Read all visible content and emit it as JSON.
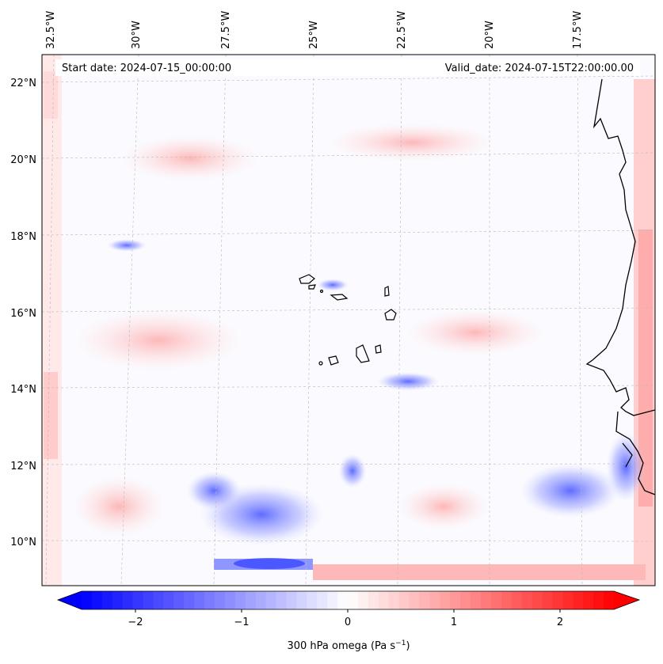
{
  "map": {
    "start_label": "Start date: 2024-07-15_00:00:00",
    "valid_label": "Valid_date: 2024-07-15T22:00:00.00",
    "lon_labels": [
      "32.5°W",
      "30°W",
      "27.5°W",
      "25°W",
      "22.5°W",
      "20°W",
      "17.5°W"
    ],
    "lat_labels": [
      "22°N",
      "20°N",
      "18°N",
      "16°N",
      "14°N",
      "12°N",
      "10°N"
    ]
  },
  "colorbar": {
    "ticks": [
      "−2",
      "−1",
      "0",
      "1",
      "2"
    ],
    "label_main": "300 hPa omega (Pa s",
    "label_exp": "−1",
    "label_close": ")",
    "vmin": -2.6,
    "vmax": 2.6,
    "low_color": "#0000ff",
    "mid_color": "#ffffff",
    "high_color": "#ff0000"
  }
}
